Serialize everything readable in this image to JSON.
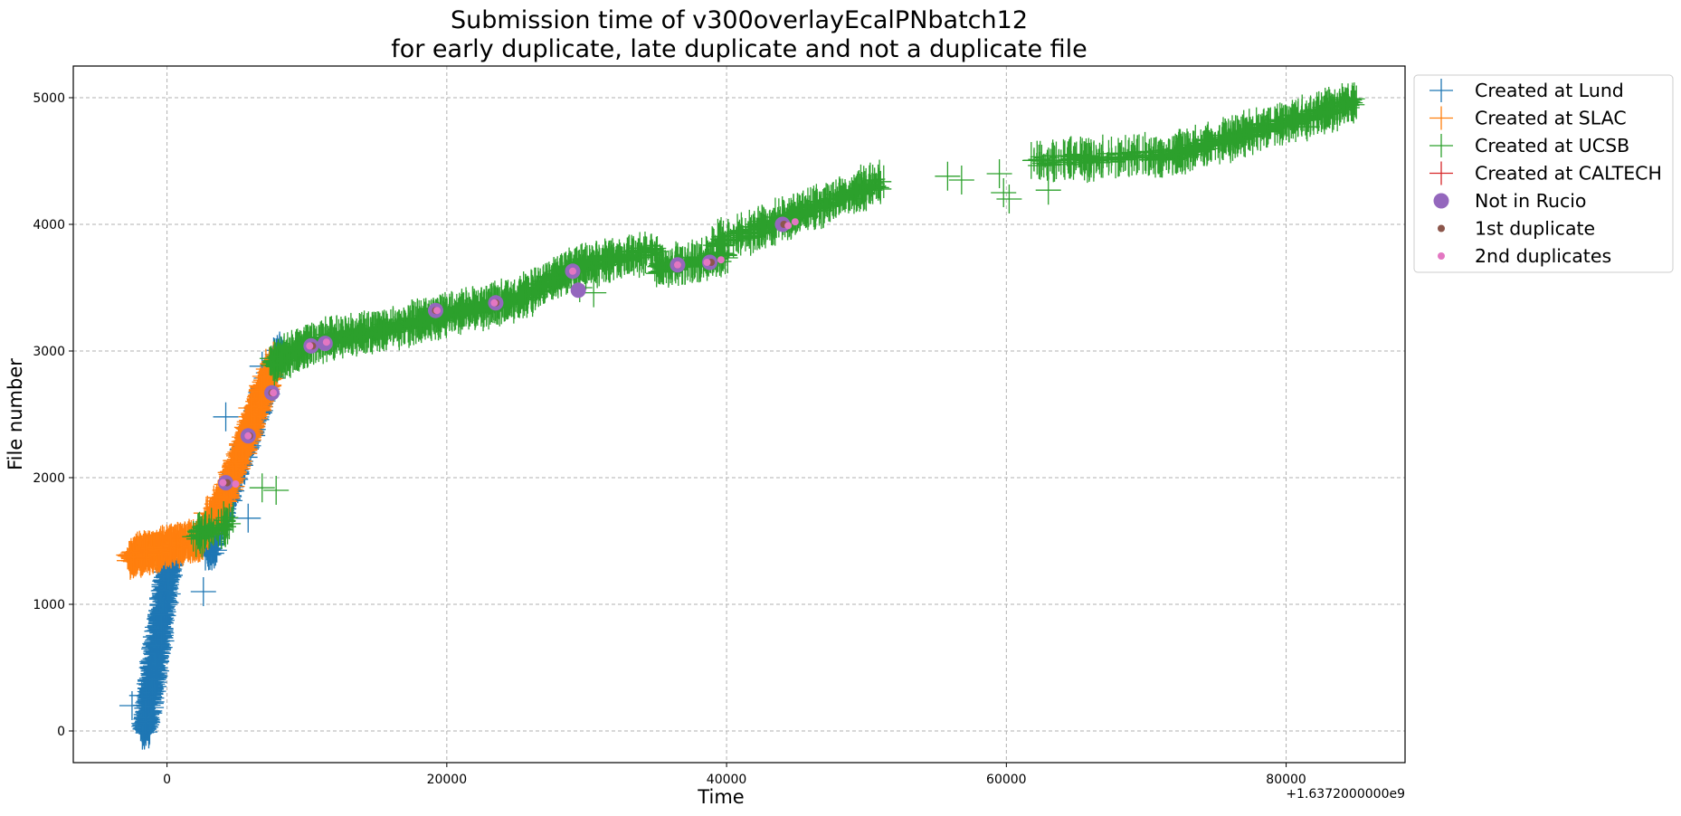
{
  "chart_data": {
    "type": "scatter",
    "title_line1": "Submission time of v300overlayEcalPNbatch12",
    "title_line2": "for early duplicate, late duplicate and not a duplicate file",
    "xlabel": "Time",
    "ylabel": "File number",
    "x_offset_label": "+1.6372000000e9",
    "xlim": [
      -6700,
      88500
    ],
    "ylim": [
      -250,
      5250
    ],
    "xticks": [
      0,
      20000,
      40000,
      60000,
      80000
    ],
    "yticks": [
      0,
      1000,
      2000,
      3000,
      4000,
      5000
    ],
    "xtick_labels": [
      "0",
      "20000",
      "40000",
      "60000",
      "80000"
    ],
    "ytick_labels": [
      "0",
      "1000",
      "2000",
      "3000",
      "4000",
      "5000"
    ],
    "grid": true,
    "legend_position": "outside top-right",
    "series": [
      {
        "name": "Created at Lund",
        "marker": "plus",
        "color": "#1f77b4",
        "bands": [
          [
            -1600,
            0,
            200,
            1350,
            1200,
            8
          ]
        ],
        "extra_bands": [
          [
            3000,
            1400,
            8000,
            3000,
            650,
            10
          ]
        ],
        "points": [
          [
            -2500,
            200
          ],
          [
            -1800,
            280
          ],
          [
            -800,
            680
          ],
          [
            2600,
            1100
          ],
          [
            3300,
            1600
          ],
          [
            5800,
            1680
          ],
          [
            4200,
            2480
          ],
          [
            6800,
            2880
          ]
        ]
      },
      {
        "name": "Created at SLAC",
        "marker": "plus",
        "color": "#ff7f0e",
        "bands": [
          [
            -2600,
            1370,
            2400,
            1520,
            700,
            10
          ],
          [
            2400,
            1520,
            4300,
            1900,
            300,
            10
          ],
          [
            4300,
            1900,
            7600,
            2900,
            900,
            10
          ]
        ],
        "points": [
          [
            -2400,
            1370
          ],
          [
            -1500,
            1420
          ],
          [
            2800,
            1720
          ],
          [
            4300,
            1850
          ],
          [
            6000,
            2550
          ],
          [
            7000,
            2800
          ]
        ]
      },
      {
        "name": "Created at UCSB",
        "marker": "plus",
        "color": "#2ca02c",
        "bands": [
          [
            2000,
            1550,
            4600,
            1650,
            80,
            10
          ],
          [
            7500,
            2900,
            10500,
            3080,
            200,
            10
          ],
          [
            10500,
            3080,
            15000,
            3150,
            180,
            10
          ],
          [
            15000,
            3150,
            21000,
            3320,
            320,
            10
          ],
          [
            21000,
            3320,
            25000,
            3400,
            200,
            10
          ],
          [
            25000,
            3400,
            29000,
            3650,
            220,
            10
          ],
          [
            29000,
            3650,
            35000,
            3800,
            240,
            10
          ],
          [
            35000,
            3650,
            40000,
            3750,
            180,
            10
          ],
          [
            39000,
            3850,
            42000,
            3950,
            70,
            10
          ],
          [
            42000,
            3950,
            51000,
            4330,
            320,
            10
          ],
          [
            62000,
            4500,
            72000,
            4550,
            200,
            10
          ],
          [
            72000,
            4550,
            85000,
            4970,
            500,
            10
          ]
        ],
        "points": [
          [
            6800,
            1920
          ],
          [
            7800,
            1900
          ],
          [
            29500,
            3500
          ],
          [
            30500,
            3460
          ],
          [
            55800,
            4380
          ],
          [
            56800,
            4350
          ],
          [
            59500,
            4400
          ],
          [
            59800,
            4250
          ],
          [
            60200,
            4200
          ],
          [
            63000,
            4270
          ],
          [
            80500,
            4790
          ],
          [
            81500,
            4770
          ],
          [
            84000,
            5000
          ]
        ]
      },
      {
        "name": "Created at CALTECH",
        "marker": "plus",
        "color": "#d62728",
        "bands": [],
        "points": []
      },
      {
        "name": "Not in Rucio",
        "marker": "large-circle",
        "color": "#9467bd",
        "bands": [],
        "points": [
          [
            4200,
            1960
          ],
          [
            5800,
            2330
          ],
          [
            7500,
            2670
          ],
          [
            10300,
            3040
          ],
          [
            11300,
            3060
          ],
          [
            19200,
            3320
          ],
          [
            23500,
            3380
          ],
          [
            29000,
            3630
          ],
          [
            29400,
            3480
          ],
          [
            36500,
            3680
          ],
          [
            38800,
            3700
          ],
          [
            44000,
            4000
          ]
        ]
      },
      {
        "name": "1st duplicate",
        "marker": "small-circle",
        "color": "#8c564b",
        "bands": [],
        "points": [
          [
            4300,
            1960
          ],
          [
            5900,
            2330
          ],
          [
            7500,
            2670
          ],
          [
            10400,
            3040
          ],
          [
            19200,
            3320
          ],
          [
            23500,
            3380
          ],
          [
            36500,
            3680
          ],
          [
            38900,
            3700
          ],
          [
            44100,
            4000
          ]
        ]
      },
      {
        "name": "2nd duplicates",
        "marker": "small-circle",
        "color": "#e377c2",
        "bands": [],
        "points": [
          [
            4000,
            1960
          ],
          [
            4900,
            1950
          ],
          [
            5800,
            2330
          ],
          [
            7600,
            2670
          ],
          [
            10200,
            3040
          ],
          [
            11400,
            3070
          ],
          [
            19300,
            3320
          ],
          [
            23400,
            3380
          ],
          [
            29000,
            3630
          ],
          [
            36500,
            3680
          ],
          [
            38600,
            3700
          ],
          [
            39600,
            3720
          ],
          [
            44400,
            3990
          ],
          [
            44900,
            4020
          ]
        ]
      }
    ]
  }
}
